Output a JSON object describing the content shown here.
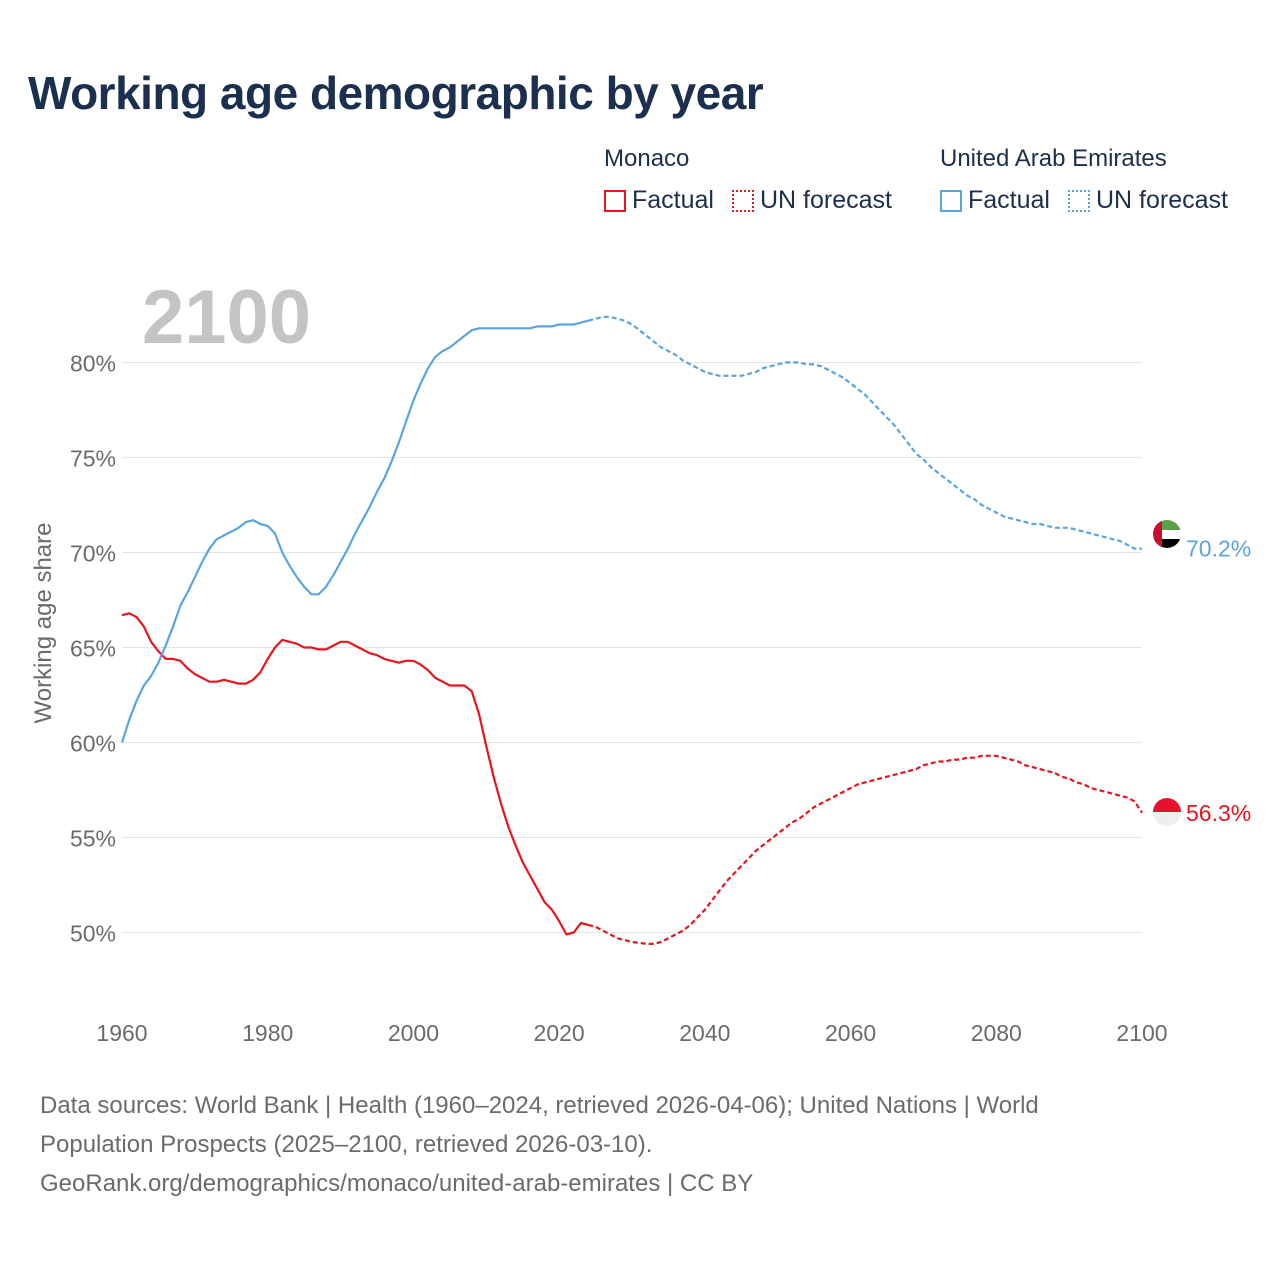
{
  "title": "Working age demographic by year",
  "year_watermark": "2100",
  "legend": {
    "groups": [
      {
        "name": "Monaco",
        "color": "#e8141e",
        "items": [
          {
            "label": "Factual",
            "style": "solid"
          },
          {
            "label": "UN forecast",
            "style": "dotted"
          }
        ]
      },
      {
        "name": "United Arab Emirates",
        "color": "#5aa5e0",
        "items": [
          {
            "label": "Factual",
            "style": "solid"
          },
          {
            "label": "UN forecast",
            "style": "dotted"
          }
        ]
      }
    ]
  },
  "footer": {
    "line1": "Data sources: World Bank | Health (1960–2024, retrieved 2026-04-06); United Nations | World",
    "line2": "Population Prospects (2025–2100, retrieved 2026-03-10).",
    "line3": "GeoRank.org/demographics/monaco/united-arab-emirates | CC BY"
  },
  "chart_data": {
    "type": "line",
    "title": "Working age demographic by year",
    "xlabel": "",
    "ylabel": "Working age share",
    "xlim": [
      1960,
      2100
    ],
    "ylim": [
      47.5,
      83.5
    ],
    "xticks": [
      1960,
      1980,
      2000,
      2020,
      2040,
      2060,
      2080,
      2100
    ],
    "xtick_labels": [
      "1960",
      "1980",
      "2000",
      "2020",
      "2040",
      "2060",
      "2080",
      "2100"
    ],
    "yticks": [
      50,
      55,
      60,
      65,
      70,
      75,
      80
    ],
    "ytick_labels": [
      "50%",
      "55%",
      "60%",
      "65%",
      "70%",
      "75%",
      "80%"
    ],
    "grid": true,
    "factual_end_year": 2024,
    "series": [
      {
        "name": "Monaco",
        "color": "#e8141e",
        "end_label": "56.3%",
        "points": [
          [
            1960,
            66.7
          ],
          [
            1961,
            66.8
          ],
          [
            1962,
            66.6
          ],
          [
            1963,
            66.1
          ],
          [
            1964,
            65.3
          ],
          [
            1965,
            64.8
          ],
          [
            1966,
            64.4
          ],
          [
            1967,
            64.4
          ],
          [
            1968,
            64.3
          ],
          [
            1969,
            63.9
          ],
          [
            1970,
            63.6
          ],
          [
            1971,
            63.4
          ],
          [
            1972,
            63.2
          ],
          [
            1973,
            63.2
          ],
          [
            1974,
            63.3
          ],
          [
            1975,
            63.2
          ],
          [
            1976,
            63.1
          ],
          [
            1977,
            63.1
          ],
          [
            1978,
            63.3
          ],
          [
            1979,
            63.7
          ],
          [
            1980,
            64.4
          ],
          [
            1981,
            65.0
          ],
          [
            1982,
            65.4
          ],
          [
            1983,
            65.3
          ],
          [
            1984,
            65.2
          ],
          [
            1985,
            65.0
          ],
          [
            1986,
            65.0
          ],
          [
            1987,
            64.9
          ],
          [
            1988,
            64.9
          ],
          [
            1989,
            65.1
          ],
          [
            1990,
            65.3
          ],
          [
            1991,
            65.3
          ],
          [
            1992,
            65.1
          ],
          [
            1993,
            64.9
          ],
          [
            1994,
            64.7
          ],
          [
            1995,
            64.6
          ],
          [
            1996,
            64.4
          ],
          [
            1997,
            64.3
          ],
          [
            1998,
            64.2
          ],
          [
            1999,
            64.3
          ],
          [
            2000,
            64.3
          ],
          [
            2001,
            64.1
          ],
          [
            2002,
            63.8
          ],
          [
            2003,
            63.4
          ],
          [
            2004,
            63.2
          ],
          [
            2005,
            63.0
          ],
          [
            2006,
            63.0
          ],
          [
            2007,
            63.0
          ],
          [
            2008,
            62.7
          ],
          [
            2009,
            61.5
          ],
          [
            2010,
            59.8
          ],
          [
            2011,
            58.2
          ],
          [
            2012,
            56.8
          ],
          [
            2013,
            55.6
          ],
          [
            2014,
            54.6
          ],
          [
            2015,
            53.7
          ],
          [
            2016,
            53.0
          ],
          [
            2017,
            52.3
          ],
          [
            2018,
            51.6
          ],
          [
            2019,
            51.2
          ],
          [
            2020,
            50.6
          ],
          [
            2021,
            49.9
          ],
          [
            2022,
            50.0
          ],
          [
            2023,
            50.5
          ],
          [
            2024,
            50.4
          ],
          [
            2025,
            50.3
          ],
          [
            2026,
            50.1
          ],
          [
            2027,
            49.9
          ],
          [
            2028,
            49.7
          ],
          [
            2029,
            49.6
          ],
          [
            2030,
            49.5
          ],
          [
            2031,
            49.45
          ],
          [
            2032,
            49.4
          ],
          [
            2033,
            49.4
          ],
          [
            2034,
            49.5
          ],
          [
            2035,
            49.7
          ],
          [
            2036,
            49.9
          ],
          [
            2037,
            50.1
          ],
          [
            2038,
            50.4
          ],
          [
            2039,
            50.8
          ],
          [
            2040,
            51.2
          ],
          [
            2041,
            51.7
          ],
          [
            2042,
            52.2
          ],
          [
            2043,
            52.7
          ],
          [
            2044,
            53.1
          ],
          [
            2045,
            53.5
          ],
          [
            2046,
            53.9
          ],
          [
            2047,
            54.3
          ],
          [
            2048,
            54.6
          ],
          [
            2049,
            54.9
          ],
          [
            2050,
            55.2
          ],
          [
            2051,
            55.5
          ],
          [
            2052,
            55.8
          ],
          [
            2053,
            56.0
          ],
          [
            2054,
            56.3
          ],
          [
            2055,
            56.6
          ],
          [
            2056,
            56.8
          ],
          [
            2057,
            57.0
          ],
          [
            2058,
            57.2
          ],
          [
            2059,
            57.4
          ],
          [
            2060,
            57.6
          ],
          [
            2061,
            57.8
          ],
          [
            2062,
            57.9
          ],
          [
            2063,
            58.0
          ],
          [
            2064,
            58.1
          ],
          [
            2065,
            58.2
          ],
          [
            2066,
            58.3
          ],
          [
            2067,
            58.4
          ],
          [
            2068,
            58.5
          ],
          [
            2069,
            58.6
          ],
          [
            2070,
            58.8
          ],
          [
            2071,
            58.9
          ],
          [
            2072,
            59.0
          ],
          [
            2073,
            59.0
          ],
          [
            2074,
            59.1
          ],
          [
            2075,
            59.1
          ],
          [
            2076,
            59.2
          ],
          [
            2077,
            59.2
          ],
          [
            2078,
            59.3
          ],
          [
            2079,
            59.3
          ],
          [
            2080,
            59.3
          ],
          [
            2081,
            59.2
          ],
          [
            2082,
            59.1
          ],
          [
            2083,
            59.0
          ],
          [
            2084,
            58.8
          ],
          [
            2085,
            58.7
          ],
          [
            2086,
            58.6
          ],
          [
            2087,
            58.5
          ],
          [
            2088,
            58.4
          ],
          [
            2089,
            58.2
          ],
          [
            2090,
            58.1
          ],
          [
            2091,
            57.9
          ],
          [
            2092,
            57.8
          ],
          [
            2093,
            57.6
          ],
          [
            2094,
            57.5
          ],
          [
            2095,
            57.4
          ],
          [
            2096,
            57.3
          ],
          [
            2097,
            57.2
          ],
          [
            2098,
            57.1
          ],
          [
            2099,
            56.9
          ],
          [
            2100,
            56.3
          ]
        ]
      },
      {
        "name": "United Arab Emirates",
        "color": "#5aa5e0",
        "end_label": "70.2%",
        "points": [
          [
            1960,
            60.0
          ],
          [
            1961,
            61.2
          ],
          [
            1962,
            62.2
          ],
          [
            1963,
            63.0
          ],
          [
            1964,
            63.5
          ],
          [
            1965,
            64.2
          ],
          [
            1966,
            65.1
          ],
          [
            1967,
            66.1
          ],
          [
            1968,
            67.2
          ],
          [
            1969,
            67.9
          ],
          [
            1970,
            68.7
          ],
          [
            1971,
            69.5
          ],
          [
            1972,
            70.2
          ],
          [
            1973,
            70.7
          ],
          [
            1974,
            70.9
          ],
          [
            1975,
            71.1
          ],
          [
            1976,
            71.3
          ],
          [
            1977,
            71.6
          ],
          [
            1978,
            71.7
          ],
          [
            1979,
            71.5
          ],
          [
            1980,
            71.4
          ],
          [
            1981,
            71.0
          ],
          [
            1982,
            70.0
          ],
          [
            1983,
            69.3
          ],
          [
            1984,
            68.7
          ],
          [
            1985,
            68.2
          ],
          [
            1986,
            67.8
          ],
          [
            1987,
            67.8
          ],
          [
            1988,
            68.2
          ],
          [
            1989,
            68.8
          ],
          [
            1990,
            69.5
          ],
          [
            1991,
            70.2
          ],
          [
            1992,
            71.0
          ],
          [
            1993,
            71.7
          ],
          [
            1994,
            72.4
          ],
          [
            1995,
            73.2
          ],
          [
            1996,
            73.9
          ],
          [
            1997,
            74.8
          ],
          [
            1998,
            75.8
          ],
          [
            1999,
            76.9
          ],
          [
            2000,
            78.0
          ],
          [
            2001,
            78.9
          ],
          [
            2002,
            79.7
          ],
          [
            2003,
            80.3
          ],
          [
            2004,
            80.6
          ],
          [
            2005,
            80.8
          ],
          [
            2006,
            81.1
          ],
          [
            2007,
            81.4
          ],
          [
            2008,
            81.7
          ],
          [
            2009,
            81.8
          ],
          [
            2010,
            81.8
          ],
          [
            2011,
            81.8
          ],
          [
            2012,
            81.8
          ],
          [
            2013,
            81.8
          ],
          [
            2014,
            81.8
          ],
          [
            2015,
            81.8
          ],
          [
            2016,
            81.8
          ],
          [
            2017,
            81.9
          ],
          [
            2018,
            81.9
          ],
          [
            2019,
            81.9
          ],
          [
            2020,
            82.0
          ],
          [
            2021,
            82.0
          ],
          [
            2022,
            82.0
          ],
          [
            2023,
            82.1
          ],
          [
            2024,
            82.2
          ],
          [
            2025,
            82.3
          ],
          [
            2026,
            82.4
          ],
          [
            2027,
            82.4
          ],
          [
            2028,
            82.3
          ],
          [
            2029,
            82.2
          ],
          [
            2030,
            82.0
          ],
          [
            2031,
            81.7
          ],
          [
            2032,
            81.4
          ],
          [
            2033,
            81.1
          ],
          [
            2034,
            80.8
          ],
          [
            2035,
            80.6
          ],
          [
            2036,
            80.4
          ],
          [
            2037,
            80.1
          ],
          [
            2038,
            79.9
          ],
          [
            2039,
            79.7
          ],
          [
            2040,
            79.5
          ],
          [
            2041,
            79.4
          ],
          [
            2042,
            79.3
          ],
          [
            2043,
            79.3
          ],
          [
            2044,
            79.3
          ],
          [
            2045,
            79.3
          ],
          [
            2046,
            79.4
          ],
          [
            2047,
            79.5
          ],
          [
            2048,
            79.7
          ],
          [
            2049,
            79.8
          ],
          [
            2050,
            79.9
          ],
          [
            2051,
            80.0
          ],
          [
            2052,
            80.0
          ],
          [
            2053,
            80.0
          ],
          [
            2054,
            79.9
          ],
          [
            2055,
            79.9
          ],
          [
            2056,
            79.8
          ],
          [
            2057,
            79.6
          ],
          [
            2058,
            79.4
          ],
          [
            2059,
            79.2
          ],
          [
            2060,
            78.9
          ],
          [
            2061,
            78.6
          ],
          [
            2062,
            78.3
          ],
          [
            2063,
            77.9
          ],
          [
            2064,
            77.5
          ],
          [
            2065,
            77.1
          ],
          [
            2066,
            76.7
          ],
          [
            2067,
            76.2
          ],
          [
            2068,
            75.7
          ],
          [
            2069,
            75.2
          ],
          [
            2070,
            74.9
          ],
          [
            2071,
            74.5
          ],
          [
            2072,
            74.2
          ],
          [
            2073,
            73.9
          ],
          [
            2074,
            73.6
          ],
          [
            2075,
            73.3
          ],
          [
            2076,
            73.0
          ],
          [
            2077,
            72.8
          ],
          [
            2078,
            72.5
          ],
          [
            2079,
            72.3
          ],
          [
            2080,
            72.1
          ],
          [
            2081,
            71.9
          ],
          [
            2082,
            71.8
          ],
          [
            2083,
            71.7
          ],
          [
            2084,
            71.6
          ],
          [
            2085,
            71.5
          ],
          [
            2086,
            71.5
          ],
          [
            2087,
            71.4
          ],
          [
            2088,
            71.3
          ],
          [
            2089,
            71.3
          ],
          [
            2090,
            71.3
          ],
          [
            2091,
            71.2
          ],
          [
            2092,
            71.1
          ],
          [
            2093,
            71.0
          ],
          [
            2094,
            70.9
          ],
          [
            2095,
            70.8
          ],
          [
            2096,
            70.7
          ],
          [
            2097,
            70.6
          ],
          [
            2098,
            70.4
          ],
          [
            2099,
            70.2
          ],
          [
            2100,
            70.2
          ]
        ]
      }
    ]
  }
}
